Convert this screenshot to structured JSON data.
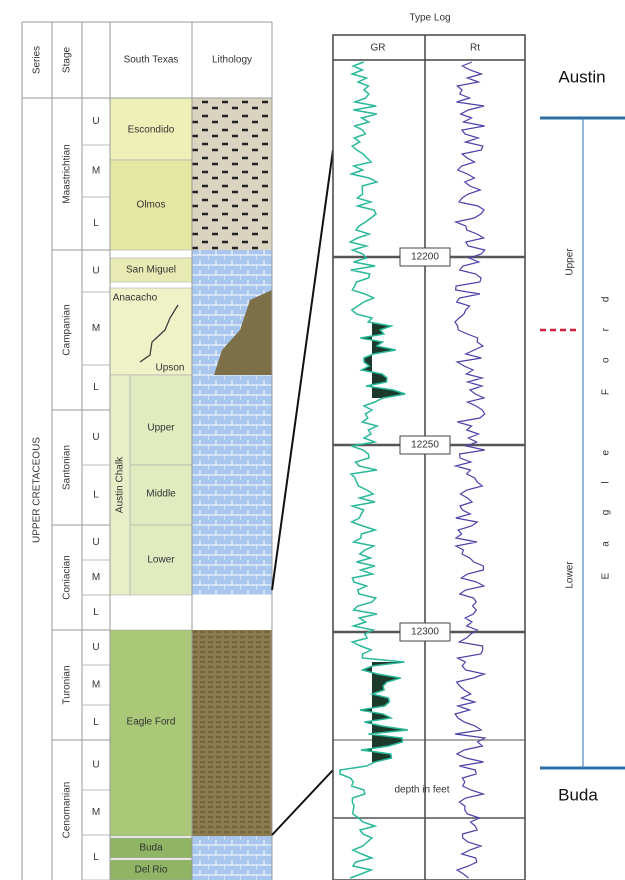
{
  "table": {
    "headers": [
      "Series",
      "Stage",
      "South Texas",
      "Lithology"
    ],
    "series_label": "UPPER CRETACEOUS",
    "stages": [
      {
        "name": "Maastrichtian",
        "substages": [
          "U",
          "M",
          "L"
        ]
      },
      {
        "name": "Campanian",
        "substages": [
          "U",
          "M",
          "L"
        ]
      },
      {
        "name": "Santonian",
        "substages": [
          "U",
          "L"
        ]
      },
      {
        "name": "Coniacian",
        "substages": [
          "U",
          "M",
          "L"
        ]
      },
      {
        "name": "Turonian",
        "substages": [
          "U",
          "M",
          "L"
        ]
      },
      {
        "name": "Cenomanian",
        "substages": [
          "U",
          "M",
          "L"
        ]
      }
    ],
    "formations": [
      "Escondido",
      "Olmos",
      "San Miguel",
      "Anacacho",
      "Upson",
      "Upper",
      "Middle",
      "Lower",
      "Eagle Ford",
      "Buda",
      "Del Rio"
    ],
    "group": "Austin Chalk"
  },
  "type_log": {
    "title": "Type Log",
    "tracks": [
      "GR",
      "Rt"
    ],
    "depth_marks": [
      12200,
      12250,
      12300
    ],
    "depth_unit": "depth in feet"
  },
  "zones": {
    "top": "Austin",
    "upper": "Upper",
    "lower": "Lower",
    "formation": "Eagle Ford",
    "bottom": "Buda"
  }
}
